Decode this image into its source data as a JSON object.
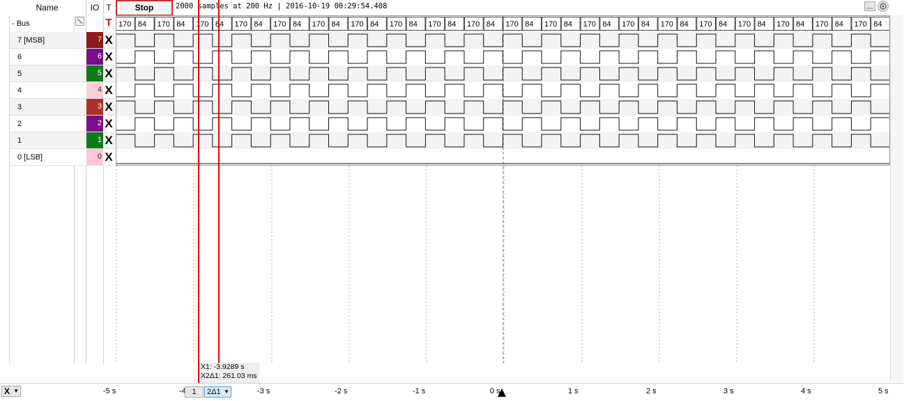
{
  "header": {
    "name_col": "Name",
    "io_col": "IO",
    "t_col": "T",
    "stop_label": "Stop",
    "status": "2000 samples at 200 Hz | 2016-10-19 00:29:54.408"
  },
  "bus": {
    "label": "- Bus",
    "trigger_symbol": "T",
    "hex_values": [
      "170",
      "84",
      "170",
      "84",
      "170",
      "84",
      "170",
      "84",
      "170",
      "84",
      "170",
      "84",
      "170",
      "84",
      "170",
      "84",
      "170",
      "84",
      "170",
      "84",
      "170",
      "84",
      "170",
      "84",
      "170",
      "84",
      "170",
      "84",
      "170",
      "84",
      "170",
      "84",
      "170",
      "84",
      "170",
      "84",
      "170",
      "84",
      "170",
      "84"
    ]
  },
  "channels": [
    {
      "label": "7 [MSB]",
      "io": "7",
      "color": "#8b1a1a",
      "trigger": "X"
    },
    {
      "label": "6",
      "io": "6",
      "color": "#7a0d8a",
      "trigger": "X"
    },
    {
      "label": "5",
      "io": "5",
      "color": "#0f7a16",
      "trigger": "X"
    },
    {
      "label": "4",
      "io": "4",
      "color": "#ffd0d8",
      "trigger": "X"
    },
    {
      "label": "3",
      "io": "3",
      "color": "#a8322a",
      "trigger": "X"
    },
    {
      "label": "2",
      "io": "2",
      "color": "#7a0d8a",
      "trigger": "X"
    },
    {
      "label": "1",
      "io": "1",
      "color": "#0f7a16",
      "trigger": "X"
    },
    {
      "label": "0 [LSB]",
      "io": "0",
      "color": "#ffc8d2",
      "trigger": "X"
    }
  ],
  "axis": {
    "ticks": [
      "-5 s",
      "-4",
      "-3 s",
      "-2 s",
      "-1 s",
      "0 s",
      "1 s",
      "2 s",
      "3 s",
      "4 s",
      "5 s"
    ]
  },
  "cursor": {
    "x1": "X1: -3.9289 s",
    "delta": "X2Δ1: 261.03 ms",
    "selector_value": "1",
    "mode_value": "2Δ1"
  },
  "controls": {
    "left_dropdown": "X"
  }
}
